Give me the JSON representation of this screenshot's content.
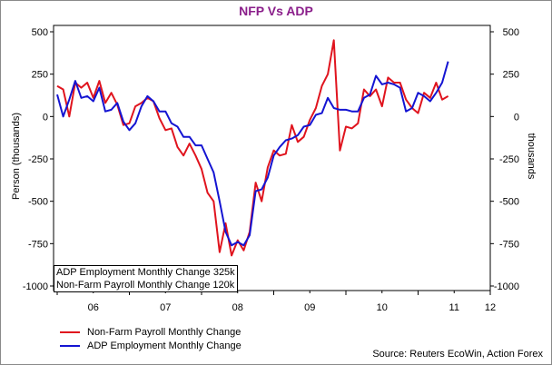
{
  "title": "NFP Vs ADP",
  "chart_data": {
    "type": "line",
    "title": "NFP Vs ADP",
    "ylabel_left": "Person (thousands)",
    "ylabel_right": "thousands",
    "xlabel": "",
    "ylim": [
      -1000,
      500
    ],
    "yticks": [
      500,
      250,
      0,
      -250,
      -500,
      -750,
      -1000
    ],
    "x_ticks": [
      "06",
      "07",
      "08",
      "09",
      "10",
      "11",
      "12"
    ],
    "x_start": 2006.0,
    "x_end": 2012.0,
    "grid": false,
    "legend_position": "bottom-left",
    "series": [
      {
        "name": "Non-Farm Payroll Monthly Change",
        "color": "#e0141e",
        "x_start": 2006.0,
        "values": [
          180,
          160,
          0,
          200,
          170,
          200,
          110,
          210,
          80,
          140,
          70,
          -50,
          -40,
          60,
          80,
          110,
          90,
          -10,
          -80,
          -70,
          -180,
          -230,
          -160,
          -230,
          -310,
          -450,
          -500,
          -800,
          -630,
          -820,
          -730,
          -790,
          -680,
          -390,
          -500,
          -300,
          -200,
          -230,
          -220,
          -50,
          -150,
          -120,
          -20,
          50,
          180,
          250,
          450,
          -200,
          -60,
          -70,
          -40,
          160,
          120,
          160,
          60,
          230,
          200,
          200,
          100,
          50,
          20,
          140,
          110,
          200,
          100,
          120
        ]
      },
      {
        "name": "ADP Employment Monthly Change",
        "color": "#1414d2",
        "x_start": 2006.0,
        "values": [
          130,
          0,
          100,
          210,
          110,
          120,
          90,
          170,
          30,
          40,
          80,
          -30,
          -80,
          -40,
          60,
          120,
          90,
          30,
          30,
          -40,
          -60,
          -120,
          -120,
          -170,
          -170,
          -250,
          -330,
          -500,
          -680,
          -760,
          -740,
          -760,
          -700,
          -440,
          -430,
          -360,
          -230,
          -180,
          -140,
          -130,
          -110,
          -60,
          -50,
          10,
          20,
          110,
          50,
          40,
          40,
          30,
          30,
          110,
          130,
          240,
          190,
          200,
          190,
          170,
          30,
          50,
          140,
          120,
          90,
          140,
          200,
          325
        ]
      }
    ]
  },
  "info_box": {
    "line1": "ADP Employment Monthly Change 325k",
    "line2": "Non-Farm Payroll Monthly Change 120k"
  },
  "legend": {
    "item1": "Non-Farm Payroll Monthly Change",
    "item2": "ADP Employment Monthly Change"
  },
  "source": "Source: Reuters EcoWin, Action Forex"
}
